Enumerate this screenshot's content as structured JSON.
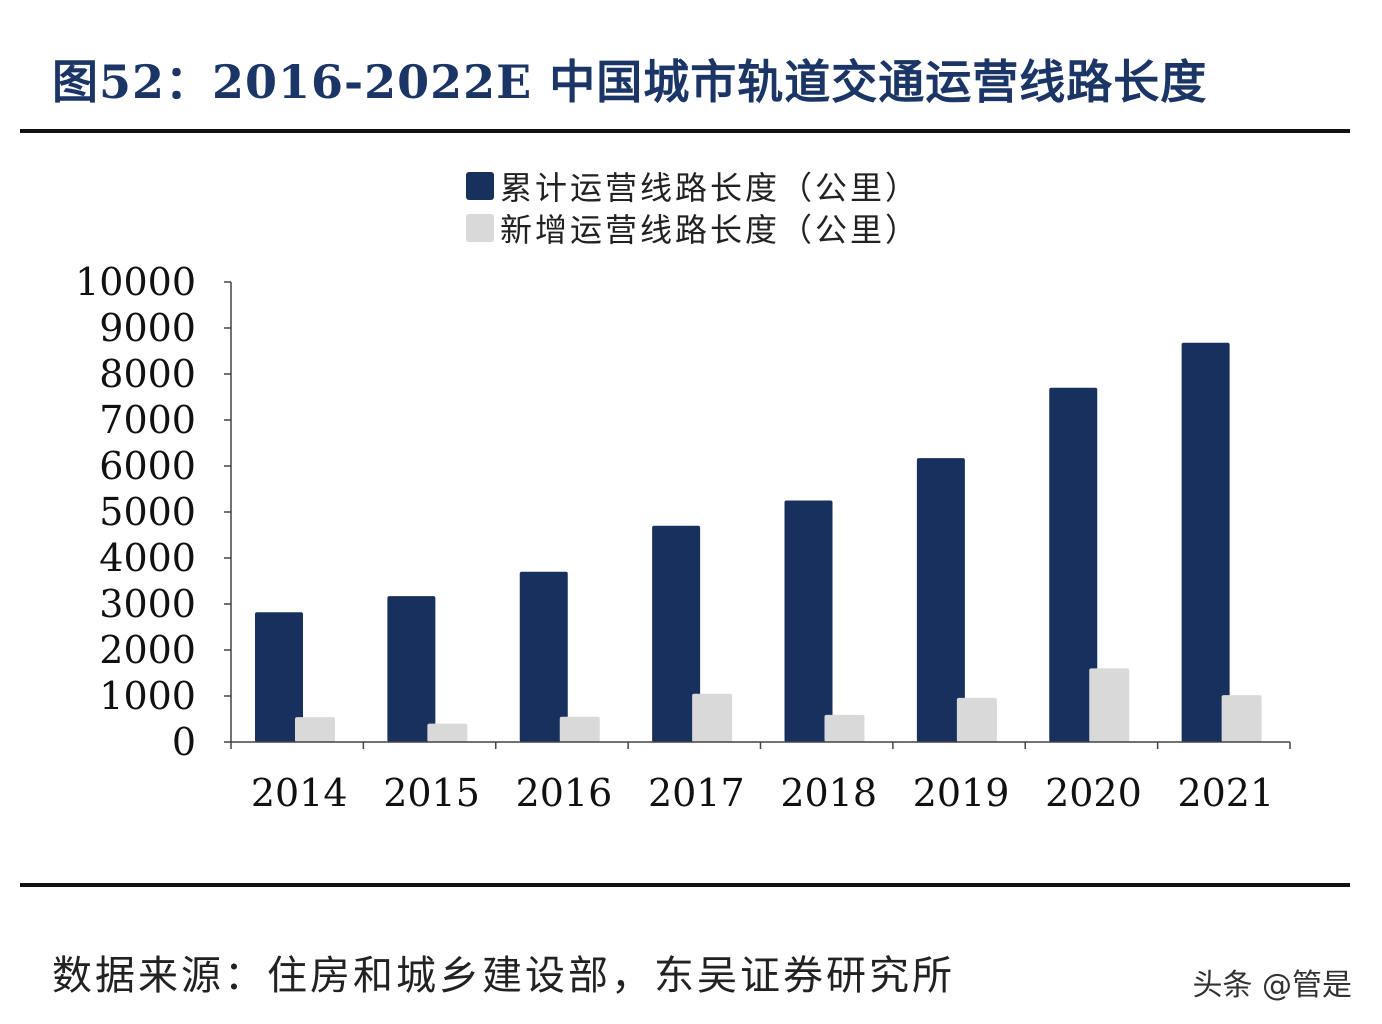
{
  "figure": {
    "title": "图52：2016-2022E 中国城市轨道交通运营线路长度",
    "source": "数据来源：住房和城乡建设部，东吴证券研究所",
    "watermark": "头条 @管是"
  },
  "legend": [
    {
      "label": "累计运营线路长度（公里）",
      "color": "#17305e"
    },
    {
      "label": "新增运营线路长度（公里）",
      "color": "#d9d9d9"
    }
  ],
  "chart_data": {
    "type": "bar",
    "categories": [
      "2014",
      "2015",
      "2016",
      "2017",
      "2018",
      "2019",
      "2020",
      "2021"
    ],
    "series": [
      {
        "name": "累计运营线路长度（公里）",
        "color": "#17305e",
        "values": [
          2820,
          3170,
          3700,
          4700,
          5250,
          6170,
          7700,
          8680
        ]
      },
      {
        "name": "新增运营线路长度（公里）",
        "color": "#d9d9d9",
        "values": [
          540,
          400,
          550,
          1050,
          590,
          960,
          1600,
          1020
        ]
      }
    ],
    "yticks": [
      "0",
      "1000",
      "2000",
      "3000",
      "4000",
      "5000",
      "6000",
      "7000",
      "8000",
      "9000",
      "10000"
    ],
    "ylim": [
      0,
      10000
    ],
    "grid": false,
    "legend_position": "top-center"
  }
}
